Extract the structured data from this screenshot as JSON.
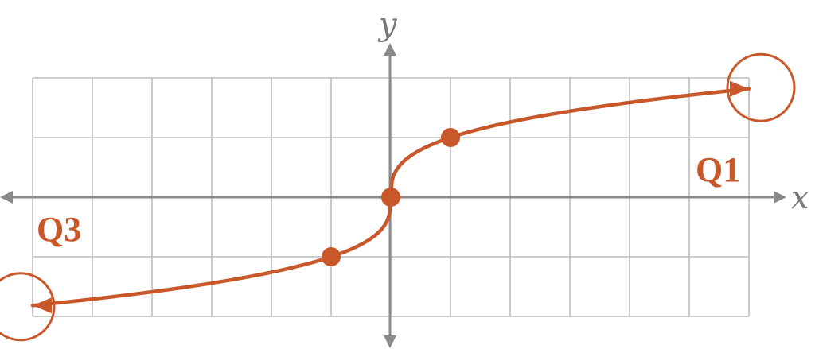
{
  "axes": {
    "x_label": "x",
    "y_label": "y"
  },
  "quadrant_labels": {
    "q1": "Q1",
    "q3": "Q3"
  },
  "grid": {
    "x_min": -6,
    "x_max": 6,
    "y_min": -2,
    "y_max": 2,
    "step": 1
  },
  "curve": {
    "type": "cube-root",
    "equation_note": "",
    "points": [
      {
        "x": -1,
        "y": -1
      },
      {
        "x": 0,
        "y": 0
      },
      {
        "x": 1,
        "y": 1
      }
    ],
    "end_behavior": {
      "left": "arrow",
      "right": "arrow"
    },
    "highlighted_ends": [
      "left",
      "right"
    ]
  },
  "colors": {
    "accent": "#c8572a",
    "grid": "#bdbdbd",
    "axis": "#8a8a8a",
    "axis_label": "#7a7a7a"
  }
}
